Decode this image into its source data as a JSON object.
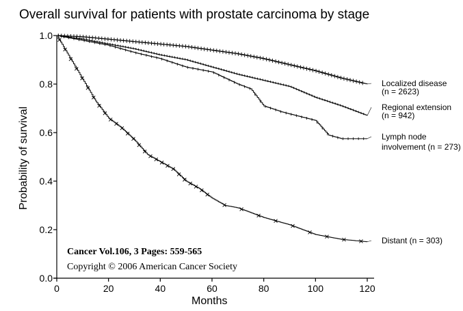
{
  "chart_data": {
    "type": "line",
    "title": "Overall survival for patients with prostate carcinoma by stage",
    "xlabel": "Months",
    "ylabel": "Probability of survival",
    "xlim": [
      0,
      120
    ],
    "ylim": [
      0,
      1
    ],
    "xticks": [
      "0",
      "20",
      "40",
      "60",
      "80",
      "100",
      "120"
    ],
    "yticks": [
      "0.0",
      "0.2",
      "0.4",
      "0.6",
      "0.8",
      "1.0"
    ],
    "grid": false,
    "legend": "labels at right end of each curve",
    "series": [
      {
        "name": "Localized disease",
        "label_lines": [
          "Localized disease",
          "(n = 2623)"
        ],
        "marker": "plus",
        "points": [
          [
            0,
            1.0
          ],
          [
            10,
            0.995
          ],
          [
            20,
            0.985
          ],
          [
            30,
            0.975
          ],
          [
            40,
            0.965
          ],
          [
            50,
            0.955
          ],
          [
            60,
            0.94
          ],
          [
            70,
            0.925
          ],
          [
            80,
            0.905
          ],
          [
            90,
            0.88
          ],
          [
            100,
            0.855
          ],
          [
            110,
            0.825
          ],
          [
            120,
            0.8
          ]
        ]
      },
      {
        "name": "Regional extension",
        "label_lines": [
          "Regional extension",
          "(n = 942)"
        ],
        "marker": "dot",
        "points": [
          [
            0,
            1.0
          ],
          [
            10,
            0.985
          ],
          [
            20,
            0.965
          ],
          [
            30,
            0.945
          ],
          [
            40,
            0.92
          ],
          [
            50,
            0.9
          ],
          [
            60,
            0.87
          ],
          [
            70,
            0.84
          ],
          [
            80,
            0.815
          ],
          [
            90,
            0.79
          ],
          [
            100,
            0.745
          ],
          [
            110,
            0.71
          ],
          [
            120,
            0.67
          ]
        ]
      },
      {
        "name": "Lymph node involvement",
        "label_lines": [
          "Lymph node",
          "involvement (n = 273)"
        ],
        "marker": "tick",
        "points": [
          [
            0,
            1.0
          ],
          [
            10,
            0.98
          ],
          [
            20,
            0.96
          ],
          [
            30,
            0.93
          ],
          [
            40,
            0.905
          ],
          [
            50,
            0.87
          ],
          [
            60,
            0.85
          ],
          [
            70,
            0.8
          ],
          [
            75,
            0.78
          ],
          [
            80,
            0.71
          ],
          [
            87,
            0.685
          ],
          [
            100,
            0.65
          ],
          [
            105,
            0.59
          ],
          [
            110,
            0.575
          ],
          [
            120,
            0.575
          ]
        ]
      },
      {
        "name": "Distant",
        "label_lines": [
          "Distant (n = 303)"
        ],
        "marker": "x",
        "points": [
          [
            0,
            1.0
          ],
          [
            5,
            0.91
          ],
          [
            10,
            0.82
          ],
          [
            15,
            0.73
          ],
          [
            20,
            0.66
          ],
          [
            25,
            0.62
          ],
          [
            30,
            0.57
          ],
          [
            35,
            0.51
          ],
          [
            40,
            0.48
          ],
          [
            45,
            0.45
          ],
          [
            50,
            0.4
          ],
          [
            55,
            0.37
          ],
          [
            60,
            0.33
          ],
          [
            65,
            0.3
          ],
          [
            70,
            0.29
          ],
          [
            80,
            0.25
          ],
          [
            90,
            0.22
          ],
          [
            95,
            0.2
          ],
          [
            100,
            0.18
          ],
          [
            110,
            0.16
          ],
          [
            120,
            0.15
          ]
        ]
      }
    ],
    "annotations": {
      "journal": "Cancer Vol.106, 3 Pages: 559-565",
      "copyright": "Copyright © 2006 American Cancer Society"
    }
  }
}
